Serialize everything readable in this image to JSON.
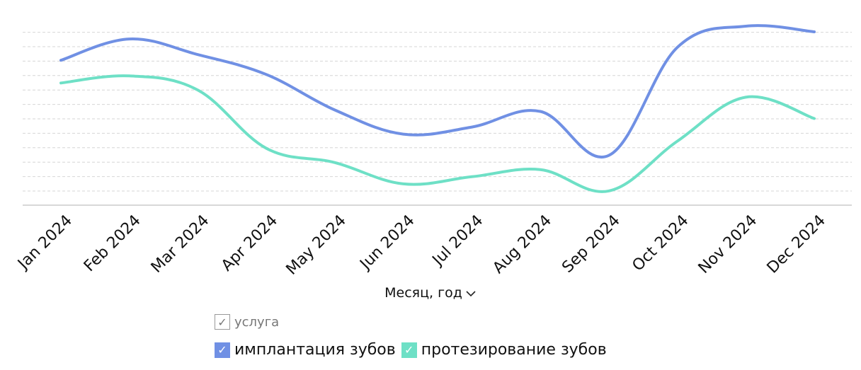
{
  "chart_data": {
    "type": "line",
    "categories": [
      "Jan 2024",
      "Feb 2024",
      "Mar 2024",
      "Apr 2024",
      "May 2024",
      "Jun 2024",
      "Jul 2024",
      "Aug 2024",
      "Sep 2024",
      "Oct 2024",
      "Nov 2024",
      "Dec 2024"
    ],
    "series": [
      {
        "name": "имплантация зубов",
        "color": "#7090e4",
        "values": [
          10.2,
          11.7,
          10.6,
          9.2,
          6.7,
          5.0,
          5.5,
          6.6,
          3.5,
          11.1,
          12.6,
          12.2
        ]
      },
      {
        "name": "протезирование зубов",
        "color": "#6ee0c6",
        "values": [
          8.6,
          9.1,
          8.1,
          4.0,
          3.0,
          1.5,
          2.0,
          2.5,
          1.0,
          4.5,
          7.6,
          6.1
        ]
      }
    ],
    "xlabel": "Месяц, год",
    "ylabel": "",
    "ylim": [
      0,
      12.6
    ],
    "grid": true,
    "legend": "bottom",
    "y_ticks_shown": false
  },
  "legend_title": "услуга",
  "check_glyph": "✓"
}
